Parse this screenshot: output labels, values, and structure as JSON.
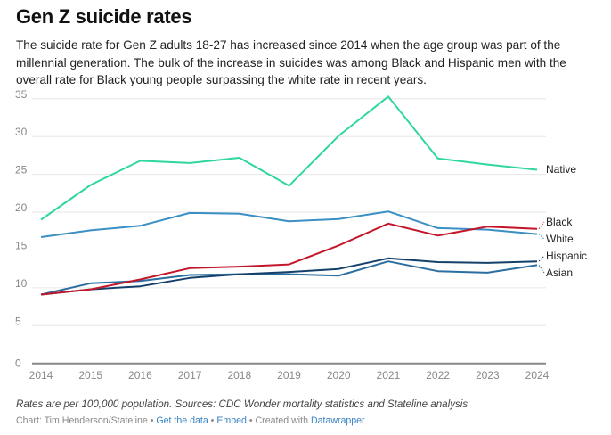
{
  "header": {
    "title": "Gen Z suicide rates",
    "description": "The suicide rate for Gen Z adults 18-27 has increased since 2014 when the age group was part of the millennial generation. The bulk of the increase in suicides was among Black and Hispanic men with the overall rate for Black young people surpassing the white rate in recent years."
  },
  "chart_data": {
    "type": "line",
    "title": "Gen Z suicide rates",
    "xlabel": "",
    "ylabel": "",
    "x": [
      2014,
      2015,
      2016,
      2017,
      2018,
      2019,
      2020,
      2021,
      2022,
      2023,
      2024
    ],
    "x_tick_labels": [
      "2014",
      "2015",
      "2016",
      "2017",
      "2018",
      "2019",
      "2020",
      "2021",
      "2022",
      "2023",
      "2024"
    ],
    "y_ticks": [
      0,
      5,
      10,
      15,
      20,
      25,
      30,
      35
    ],
    "ylim": [
      0,
      35
    ],
    "grid": true,
    "legend": "direct labels at right end of lines",
    "series": [
      {
        "name": "Native",
        "color": "#2fd6a0",
        "values": [
          19.0,
          23.6,
          26.8,
          26.5,
          27.2,
          23.5,
          30.1,
          35.3,
          27.1,
          26.3,
          25.6
        ]
      },
      {
        "name": "White",
        "color": "#3a8fc4",
        "values": [
          16.7,
          17.6,
          18.2,
          19.9,
          19.8,
          18.8,
          19.1,
          20.1,
          17.9,
          17.7,
          17.1
        ]
      },
      {
        "name": "Black",
        "color": "#c4162a",
        "values": [
          9.1,
          9.8,
          11.1,
          12.6,
          12.8,
          13.1,
          15.6,
          18.5,
          16.9,
          18.1,
          17.8
        ]
      },
      {
        "name": "Hispanic",
        "color": "#14406b",
        "values": [
          9.1,
          9.8,
          10.2,
          11.3,
          11.8,
          12.1,
          12.5,
          13.9,
          13.4,
          13.3,
          13.5
        ]
      },
      {
        "name": "Asian",
        "color": "#2a6f9f",
        "values": [
          9.1,
          10.6,
          10.9,
          11.7,
          11.8,
          11.8,
          11.6,
          13.5,
          12.2,
          12.0,
          13.0
        ]
      }
    ]
  },
  "footer": {
    "notes": "Rates are per 100,000 population. Sources: CDC Wonder mortality statistics and Stateline analysis",
    "byline_prefix": "Chart: Tim Henderson/Stateline",
    "sep": " • ",
    "get_data_label": "Get the data",
    "embed_label": "Embed",
    "created_with": "Created with ",
    "datawrapper_label": "Datawrapper"
  }
}
